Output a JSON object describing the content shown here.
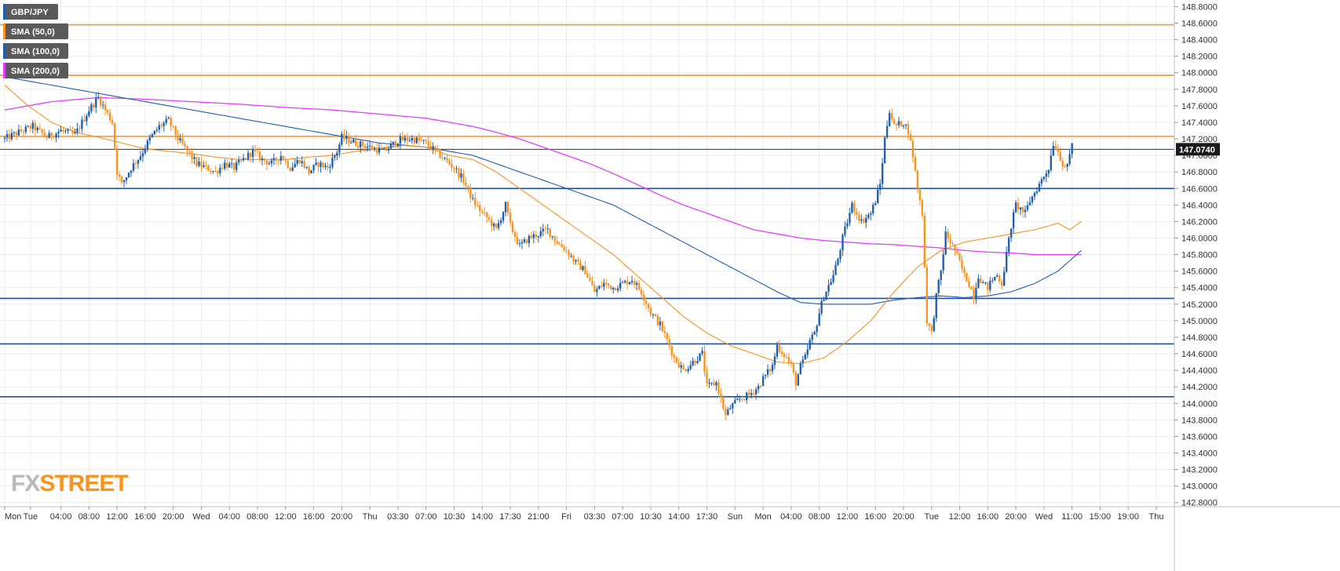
{
  "chart_data": {
    "type": "candlestick",
    "symbol": "GBP/JPY",
    "legend": [
      {
        "label": "GBP/JPY",
        "color": "#1f5fb0"
      },
      {
        "label": "SMA (50,0)",
        "color": "#f7931e"
      },
      {
        "label": "SMA (100,0)",
        "color": "#1f5fb0"
      },
      {
        "label": "SMA (200,0)",
        "color": "#e040fb"
      }
    ],
    "ylim": [
      142.75,
      148.88
    ],
    "y_ticks": [
      "148.8000",
      "148.6000",
      "148.4000",
      "148.2000",
      "148.0000",
      "147.8000",
      "147.6000",
      "147.4000",
      "147.2000",
      "147.0000",
      "146.8000",
      "146.6000",
      "146.4000",
      "146.2000",
      "146.0000",
      "145.8000",
      "145.6000",
      "145.4000",
      "145.2000",
      "145.0000",
      "144.8000",
      "144.6000",
      "144.4000",
      "144.2000",
      "144.0000",
      "143.8000",
      "143.6000",
      "143.4000",
      "143.2000",
      "143.0000",
      "142.8000"
    ],
    "x_labels": [
      "Mon",
      "Tue",
      "04:00",
      "08:00",
      "12:00",
      "16:00",
      "20:00",
      "Wed",
      "04:00",
      "08:00",
      "12:00",
      "16:00",
      "20:00",
      "Thu",
      "03:30",
      "07:00",
      "10:30",
      "14:00",
      "17:30",
      "21:00",
      "Fri",
      "03:30",
      "07:00",
      "10:30",
      "14:00",
      "17:30",
      "Sun",
      "Mon",
      "04:00",
      "08:00",
      "12:00",
      "16:00",
      "20:00",
      "Tue",
      "12:00",
      "16:00",
      "20:00",
      "Wed",
      "11:00",
      "15:00",
      "19:00",
      "Thu"
    ],
    "x_label_positions": [
      0,
      11,
      24,
      36,
      48,
      60,
      72,
      84,
      96,
      108,
      120,
      132,
      144,
      156,
      168,
      180,
      192,
      204,
      216,
      228,
      240,
      252,
      264,
      276,
      288,
      300,
      312,
      324,
      336,
      348,
      360,
      372,
      384,
      396,
      408,
      420,
      432,
      444,
      456,
      468,
      480,
      492
    ],
    "n_candles": 492,
    "resistance_levels": [
      148.58,
      147.97,
      147.23
    ],
    "support_levels": [
      146.6,
      145.27,
      144.72,
      144.08
    ],
    "current_price": 147.074,
    "current_price_label": "147.0740",
    "up_color": "#1f5fb0",
    "down_color": "#f7931e",
    "sma50_color": "#f7931e",
    "sma100_color": "#1f5fb0",
    "sma200_color": "#e040fb",
    "close_path": [
      [
        0,
        147.2
      ],
      [
        6,
        147.28
      ],
      [
        12,
        147.35
      ],
      [
        18,
        147.22
      ],
      [
        24,
        147.3
      ],
      [
        30,
        147.25
      ],
      [
        36,
        147.55
      ],
      [
        40,
        147.7
      ],
      [
        46,
        147.4
      ],
      [
        48,
        146.8
      ],
      [
        50,
        146.65
      ],
      [
        54,
        146.85
      ],
      [
        58,
        147.0
      ],
      [
        62,
        147.2
      ],
      [
        66,
        147.35
      ],
      [
        70,
        147.42
      ],
      [
        74,
        147.2
      ],
      [
        78,
        147.05
      ],
      [
        82,
        146.9
      ],
      [
        86,
        146.85
      ],
      [
        90,
        146.8
      ],
      [
        94,
        146.9
      ],
      [
        98,
        146.85
      ],
      [
        102,
        146.95
      ],
      [
        106,
        147.05
      ],
      [
        110,
        146.95
      ],
      [
        114,
        146.9
      ],
      [
        118,
        147.0
      ],
      [
        122,
        146.85
      ],
      [
        126,
        146.95
      ],
      [
        130,
        146.8
      ],
      [
        134,
        146.9
      ],
      [
        138,
        146.85
      ],
      [
        142,
        147.05
      ],
      [
        144,
        147.22
      ],
      [
        150,
        147.15
      ],
      [
        156,
        147.1
      ],
      [
        162,
        147.05
      ],
      [
        168,
        147.18
      ],
      [
        174,
        147.2
      ],
      [
        180,
        147.15
      ],
      [
        186,
        147.0
      ],
      [
        192,
        146.85
      ],
      [
        196,
        146.7
      ],
      [
        200,
        146.45
      ],
      [
        204,
        146.3
      ],
      [
        206,
        146.25
      ],
      [
        210,
        146.1
      ],
      [
        214,
        146.4
      ],
      [
        216,
        146.15
      ],
      [
        220,
        145.9
      ],
      [
        224,
        146.0
      ],
      [
        228,
        146.05
      ],
      [
        232,
        146.1
      ],
      [
        236,
        145.95
      ],
      [
        240,
        145.85
      ],
      [
        244,
        145.7
      ],
      [
        248,
        145.6
      ],
      [
        252,
        145.35
      ],
      [
        256,
        145.45
      ],
      [
        260,
        145.4
      ],
      [
        264,
        145.45
      ],
      [
        268,
        145.5
      ],
      [
        272,
        145.35
      ],
      [
        276,
        145.1
      ],
      [
        280,
        144.95
      ],
      [
        284,
        144.7
      ],
      [
        286,
        144.55
      ],
      [
        290,
        144.4
      ],
      [
        294,
        144.5
      ],
      [
        298,
        144.6
      ],
      [
        300,
        144.2
      ],
      [
        304,
        144.25
      ],
      [
        306,
        144.05
      ],
      [
        308,
        143.85
      ],
      [
        310,
        143.95
      ],
      [
        314,
        144.05
      ],
      [
        318,
        144.1
      ],
      [
        322,
        144.2
      ],
      [
        324,
        144.3
      ],
      [
        328,
        144.45
      ],
      [
        330,
        144.7
      ],
      [
        334,
        144.55
      ],
      [
        336,
        144.45
      ],
      [
        338,
        144.25
      ],
      [
        340,
        144.45
      ],
      [
        342,
        144.55
      ],
      [
        344,
        144.75
      ],
      [
        346,
        144.85
      ],
      [
        348,
        145.1
      ],
      [
        350,
        145.3
      ],
      [
        354,
        145.55
      ],
      [
        356,
        145.75
      ],
      [
        358,
        146.0
      ],
      [
        360,
        146.2
      ],
      [
        362,
        146.4
      ],
      [
        366,
        146.2
      ],
      [
        370,
        146.3
      ],
      [
        372,
        146.45
      ],
      [
        374,
        146.65
      ],
      [
        376,
        147.2
      ],
      [
        378,
        147.55
      ],
      [
        380,
        147.35
      ],
      [
        384,
        147.4
      ],
      [
        386,
        147.3
      ],
      [
        388,
        147.0
      ],
      [
        390,
        146.6
      ],
      [
        392,
        146.3
      ],
      [
        394,
        145.0
      ],
      [
        396,
        144.85
      ],
      [
        398,
        145.3
      ],
      [
        400,
        145.6
      ],
      [
        402,
        146.05
      ],
      [
        404,
        145.95
      ],
      [
        406,
        145.85
      ],
      [
        408,
        145.7
      ],
      [
        410,
        145.55
      ],
      [
        412,
        145.45
      ],
      [
        414,
        145.3
      ],
      [
        416,
        145.55
      ],
      [
        418,
        145.45
      ],
      [
        420,
        145.4
      ],
      [
        422,
        145.5
      ],
      [
        424,
        145.55
      ],
      [
        426,
        145.45
      ],
      [
        430,
        146.15
      ],
      [
        432,
        146.4
      ],
      [
        434,
        146.35
      ],
      [
        436,
        146.3
      ],
      [
        438,
        146.45
      ],
      [
        440,
        146.55
      ],
      [
        442,
        146.65
      ],
      [
        444,
        146.75
      ],
      [
        446,
        146.85
      ],
      [
        448,
        147.15
      ],
      [
        450,
        147.05
      ],
      [
        452,
        146.9
      ],
      [
        454,
        146.85
      ],
      [
        456,
        147.15
      ]
    ],
    "sma50_path": [
      [
        0,
        147.85
      ],
      [
        10,
        147.6
      ],
      [
        20,
        147.4
      ],
      [
        30,
        147.28
      ],
      [
        40,
        147.22
      ],
      [
        50,
        147.15
      ],
      [
        60,
        147.08
      ],
      [
        70,
        147.05
      ],
      [
        80,
        147.02
      ],
      [
        90,
        146.98
      ],
      [
        100,
        146.95
      ],
      [
        110,
        146.95
      ],
      [
        120,
        146.95
      ],
      [
        130,
        146.98
      ],
      [
        140,
        147.0
      ],
      [
        150,
        147.05
      ],
      [
        160,
        147.08
      ],
      [
        170,
        147.12
      ],
      [
        180,
        147.1
      ],
      [
        190,
        147.0
      ],
      [
        200,
        146.95
      ],
      [
        210,
        146.8
      ],
      [
        220,
        146.6
      ],
      [
        230,
        146.4
      ],
      [
        240,
        146.2
      ],
      [
        250,
        146.0
      ],
      [
        260,
        145.8
      ],
      [
        270,
        145.55
      ],
      [
        280,
        145.3
      ],
      [
        290,
        145.05
      ],
      [
        300,
        144.85
      ],
      [
        310,
        144.7
      ],
      [
        320,
        144.6
      ],
      [
        330,
        144.5
      ],
      [
        340,
        144.48
      ],
      [
        350,
        144.55
      ],
      [
        360,
        144.75
      ],
      [
        370,
        145.0
      ],
      [
        380,
        145.35
      ],
      [
        390,
        145.65
      ],
      [
        400,
        145.85
      ],
      [
        410,
        145.95
      ],
      [
        420,
        146.0
      ],
      [
        430,
        146.05
      ],
      [
        440,
        146.1
      ],
      [
        450,
        146.18
      ],
      [
        455,
        146.1
      ],
      [
        460,
        146.2
      ]
    ],
    "sma100_path": [
      [
        0,
        147.95
      ],
      [
        20,
        147.85
      ],
      [
        40,
        147.75
      ],
      [
        60,
        147.65
      ],
      [
        80,
        147.55
      ],
      [
        100,
        147.45
      ],
      [
        120,
        147.35
      ],
      [
        140,
        147.25
      ],
      [
        160,
        147.15
      ],
      [
        180,
        147.1
      ],
      [
        190,
        147.05
      ],
      [
        200,
        147.0
      ],
      [
        210,
        146.9
      ],
      [
        220,
        146.8
      ],
      [
        230,
        146.7
      ],
      [
        240,
        146.6
      ],
      [
        250,
        146.5
      ],
      [
        260,
        146.4
      ],
      [
        270,
        146.25
      ],
      [
        280,
        146.1
      ],
      [
        290,
        145.95
      ],
      [
        300,
        145.8
      ],
      [
        310,
        145.65
      ],
      [
        320,
        145.5
      ],
      [
        330,
        145.35
      ],
      [
        340,
        145.22
      ],
      [
        350,
        145.2
      ],
      [
        360,
        145.2
      ],
      [
        370,
        145.2
      ],
      [
        380,
        145.25
      ],
      [
        390,
        145.28
      ],
      [
        400,
        145.3
      ],
      [
        410,
        145.28
      ],
      [
        420,
        145.3
      ],
      [
        430,
        145.35
      ],
      [
        440,
        145.45
      ],
      [
        450,
        145.6
      ],
      [
        460,
        145.85
      ]
    ],
    "sma200_path": [
      [
        0,
        147.55
      ],
      [
        20,
        147.65
      ],
      [
        40,
        147.7
      ],
      [
        60,
        147.68
      ],
      [
        80,
        147.65
      ],
      [
        100,
        147.62
      ],
      [
        120,
        147.58
      ],
      [
        140,
        147.55
      ],
      [
        160,
        147.5
      ],
      [
        180,
        147.45
      ],
      [
        190,
        147.4
      ],
      [
        200,
        147.35
      ],
      [
        210,
        147.28
      ],
      [
        220,
        147.2
      ],
      [
        230,
        147.1
      ],
      [
        240,
        147.0
      ],
      [
        250,
        146.9
      ],
      [
        260,
        146.78
      ],
      [
        270,
        146.65
      ],
      [
        280,
        146.52
      ],
      [
        290,
        146.4
      ],
      [
        300,
        146.3
      ],
      [
        310,
        146.2
      ],
      [
        320,
        146.1
      ],
      [
        330,
        146.05
      ],
      [
        340,
        146.0
      ],
      [
        350,
        145.97
      ],
      [
        360,
        145.95
      ],
      [
        370,
        145.93
      ],
      [
        380,
        145.92
      ],
      [
        390,
        145.9
      ],
      [
        400,
        145.88
      ],
      [
        410,
        145.85
      ],
      [
        420,
        145.83
      ],
      [
        430,
        145.82
      ],
      [
        440,
        145.8
      ],
      [
        450,
        145.8
      ],
      [
        460,
        145.8
      ]
    ]
  },
  "logo": {
    "prefix": "FX",
    "suffix": "STREET"
  }
}
